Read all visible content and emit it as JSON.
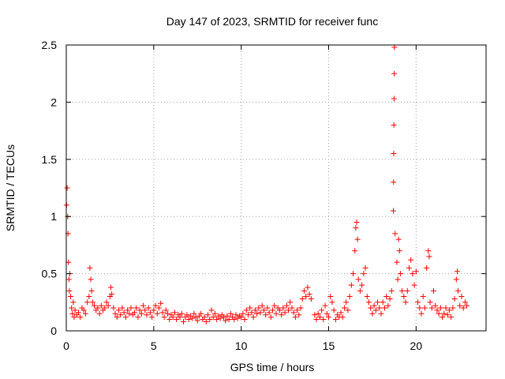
{
  "chart_data": {
    "type": "scatter",
    "title": "Day 147 of 2023, SRMTID for receiver func",
    "xlabel": "GPS time / hours",
    "ylabel": "SRMTID / TECUs",
    "xlim": [
      0,
      24
    ],
    "ylim": [
      0,
      2.5
    ],
    "xticks": [
      0,
      5,
      10,
      15,
      20
    ],
    "xtick_labels": [
      "0",
      "5",
      "10",
      "15",
      "20"
    ],
    "yticks": [
      0,
      0.5,
      1,
      1.5,
      2,
      2.5
    ],
    "ytick_labels": [
      "0",
      "0.5",
      "1",
      "1.5",
      "2",
      "2.5"
    ],
    "grid": true,
    "marker": "+",
    "color": "#ff0000",
    "series": [
      {
        "name": "SRMTID",
        "points": [
          [
            0.02,
            1.1
          ],
          [
            0.05,
            1.25
          ],
          [
            0.08,
            1.0
          ],
          [
            0.1,
            0.85
          ],
          [
            0.12,
            0.6
          ],
          [
            0.15,
            0.45
          ],
          [
            0.18,
            0.35
          ],
          [
            0.2,
            0.5
          ],
          [
            0.25,
            0.3
          ],
          [
            0.3,
            0.2
          ],
          [
            0.35,
            0.15
          ],
          [
            0.4,
            0.25
          ],
          [
            0.45,
            0.12
          ],
          [
            0.5,
            0.18
          ],
          [
            0.6,
            0.14
          ],
          [
            0.7,
            0.16
          ],
          [
            0.8,
            0.12
          ],
          [
            0.9,
            0.2
          ],
          [
            1.0,
            0.18
          ],
          [
            1.1,
            0.15
          ],
          [
            1.2,
            0.25
          ],
          [
            1.3,
            0.3
          ],
          [
            1.35,
            0.55
          ],
          [
            1.4,
            0.45
          ],
          [
            1.45,
            0.35
          ],
          [
            1.5,
            0.25
          ],
          [
            1.6,
            0.22
          ],
          [
            1.7,
            0.18
          ],
          [
            1.8,
            0.2
          ],
          [
            1.9,
            0.15
          ],
          [
            2.0,
            0.22
          ],
          [
            2.1,
            0.18
          ],
          [
            2.2,
            0.2
          ],
          [
            2.3,
            0.25
          ],
          [
            2.4,
            0.22
          ],
          [
            2.5,
            0.3
          ],
          [
            2.55,
            0.38
          ],
          [
            2.6,
            0.32
          ],
          [
            2.7,
            0.2
          ],
          [
            2.8,
            0.15
          ],
          [
            2.9,
            0.12
          ],
          [
            3.0,
            0.18
          ],
          [
            3.1,
            0.14
          ],
          [
            3.2,
            0.2
          ],
          [
            3.3,
            0.16
          ],
          [
            3.4,
            0.12
          ],
          [
            3.5,
            0.18
          ],
          [
            3.6,
            0.15
          ],
          [
            3.7,
            0.2
          ],
          [
            3.8,
            0.14
          ],
          [
            3.9,
            0.16
          ],
          [
            4.0,
            0.2
          ],
          [
            4.1,
            0.12
          ],
          [
            4.2,
            0.18
          ],
          [
            4.3,
            0.15
          ],
          [
            4.4,
            0.22
          ],
          [
            4.5,
            0.18
          ],
          [
            4.6,
            0.14
          ],
          [
            4.7,
            0.2
          ],
          [
            4.8,
            0.16
          ],
          [
            4.9,
            0.12
          ],
          [
            5.0,
            0.18
          ],
          [
            5.1,
            0.22
          ],
          [
            5.2,
            0.15
          ],
          [
            5.3,
            0.2
          ],
          [
            5.4,
            0.24
          ],
          [
            5.5,
            0.16
          ],
          [
            5.6,
            0.12
          ],
          [
            5.7,
            0.18
          ],
          [
            5.8,
            0.15
          ],
          [
            5.9,
            0.1
          ],
          [
            6.0,
            0.14
          ],
          [
            6.1,
            0.12
          ],
          [
            6.2,
            0.16
          ],
          [
            6.3,
            0.1
          ],
          [
            6.4,
            0.14
          ],
          [
            6.5,
            0.12
          ],
          [
            6.6,
            0.15
          ],
          [
            6.7,
            0.08
          ],
          [
            6.8,
            0.12
          ],
          [
            6.9,
            0.14
          ],
          [
            7.0,
            0.1
          ],
          [
            7.1,
            0.13
          ],
          [
            7.2,
            0.11
          ],
          [
            7.3,
            0.15
          ],
          [
            7.4,
            0.12
          ],
          [
            7.5,
            0.09
          ],
          [
            7.6,
            0.13
          ],
          [
            7.7,
            0.15
          ],
          [
            7.8,
            0.1
          ],
          [
            7.9,
            0.12
          ],
          [
            8.0,
            0.08
          ],
          [
            8.1,
            0.14
          ],
          [
            8.2,
            0.1
          ],
          [
            8.3,
            0.18
          ],
          [
            8.4,
            0.12
          ],
          [
            8.5,
            0.15
          ],
          [
            8.6,
            0.1
          ],
          [
            8.7,
            0.13
          ],
          [
            8.8,
            0.11
          ],
          [
            8.9,
            0.14
          ],
          [
            9.0,
            0.12
          ],
          [
            9.1,
            0.09
          ],
          [
            9.2,
            0.13
          ],
          [
            9.3,
            0.1
          ],
          [
            9.4,
            0.15
          ],
          [
            9.5,
            0.12
          ],
          [
            9.6,
            0.1
          ],
          [
            9.7,
            0.14
          ],
          [
            9.8,
            0.11
          ],
          [
            9.9,
            0.13
          ],
          [
            10.0,
            0.12
          ],
          [
            10.1,
            0.15
          ],
          [
            10.2,
            0.1
          ],
          [
            10.3,
            0.18
          ],
          [
            10.4,
            0.14
          ],
          [
            10.5,
            0.2
          ],
          [
            10.6,
            0.16
          ],
          [
            10.7,
            0.12
          ],
          [
            10.8,
            0.18
          ],
          [
            10.9,
            0.15
          ],
          [
            11.0,
            0.2
          ],
          [
            11.1,
            0.16
          ],
          [
            11.2,
            0.22
          ],
          [
            11.3,
            0.18
          ],
          [
            11.4,
            0.14
          ],
          [
            11.5,
            0.2
          ],
          [
            11.6,
            0.16
          ],
          [
            11.7,
            0.12
          ],
          [
            11.8,
            0.18
          ],
          [
            11.9,
            0.22
          ],
          [
            12.0,
            0.15
          ],
          [
            12.1,
            0.2
          ],
          [
            12.2,
            0.18
          ],
          [
            12.3,
            0.14
          ],
          [
            12.4,
            0.2
          ],
          [
            12.5,
            0.16
          ],
          [
            12.6,
            0.22
          ],
          [
            12.7,
            0.18
          ],
          [
            12.8,
            0.25
          ],
          [
            12.9,
            0.2
          ],
          [
            13.0,
            0.16
          ],
          [
            13.1,
            0.12
          ],
          [
            13.2,
            0.18
          ],
          [
            13.3,
            0.14
          ],
          [
            13.4,
            0.2
          ],
          [
            13.5,
            0.28
          ],
          [
            13.6,
            0.35
          ],
          [
            13.7,
            0.3
          ],
          [
            13.8,
            0.38
          ],
          [
            13.9,
            0.32
          ],
          [
            14.0,
            0.28
          ],
          [
            14.2,
            0.14
          ],
          [
            14.3,
            0.1
          ],
          [
            14.4,
            0.15
          ],
          [
            14.5,
            0.12
          ],
          [
            14.6,
            0.18
          ],
          [
            14.7,
            0.1
          ],
          [
            14.8,
            0.22
          ],
          [
            14.9,
            0.15
          ],
          [
            15.0,
            0.12
          ],
          [
            15.1,
            0.3
          ],
          [
            15.2,
            0.25
          ],
          [
            15.3,
            0.18
          ],
          [
            15.4,
            0.1
          ],
          [
            15.5,
            0.14
          ],
          [
            15.6,
            0.12
          ],
          [
            15.7,
            0.16
          ],
          [
            15.8,
            0.12
          ],
          [
            15.9,
            0.2
          ],
          [
            16.0,
            0.25
          ],
          [
            16.1,
            0.18
          ],
          [
            16.2,
            0.3
          ],
          [
            16.3,
            0.4
          ],
          [
            16.4,
            0.5
          ],
          [
            16.5,
            0.7
          ],
          [
            16.55,
            0.9
          ],
          [
            16.6,
            0.95
          ],
          [
            16.65,
            0.8
          ],
          [
            16.7,
            0.45
          ],
          [
            16.8,
            0.35
          ],
          [
            16.9,
            0.4
          ],
          [
            17.0,
            0.5
          ],
          [
            17.1,
            0.55
          ],
          [
            17.2,
            0.3
          ],
          [
            17.3,
            0.25
          ],
          [
            17.4,
            0.2
          ],
          [
            17.5,
            0.15
          ],
          [
            17.6,
            0.22
          ],
          [
            17.7,
            0.18
          ],
          [
            17.8,
            0.25
          ],
          [
            17.9,
            0.2
          ],
          [
            18.0,
            0.15
          ],
          [
            18.1,
            0.25
          ],
          [
            18.2,
            0.2
          ],
          [
            18.3,
            0.3
          ],
          [
            18.4,
            0.22
          ],
          [
            18.5,
            0.28
          ],
          [
            18.6,
            0.35
          ],
          [
            18.7,
            1.05
          ],
          [
            18.71,
            1.3
          ],
          [
            18.72,
            1.55
          ],
          [
            18.73,
            1.8
          ],
          [
            18.74,
            2.03
          ],
          [
            18.75,
            2.25
          ],
          [
            18.76,
            2.48
          ],
          [
            18.8,
            0.85
          ],
          [
            18.9,
            0.6
          ],
          [
            18.95,
            0.45
          ],
          [
            19.0,
            0.8
          ],
          [
            19.05,
            0.7
          ],
          [
            19.1,
            0.5
          ],
          [
            19.2,
            0.35
          ],
          [
            19.3,
            0.3
          ],
          [
            19.4,
            0.25
          ],
          [
            19.5,
            0.35
          ],
          [
            19.6,
            0.55
          ],
          [
            19.7,
            0.62
          ],
          [
            19.8,
            0.5
          ],
          [
            19.9,
            0.4
          ],
          [
            20.0,
            0.52
          ],
          [
            20.1,
            0.25
          ],
          [
            20.2,
            0.2
          ],
          [
            20.3,
            0.15
          ],
          [
            20.4,
            0.3
          ],
          [
            20.5,
            0.2
          ],
          [
            20.6,
            0.55
          ],
          [
            20.7,
            0.7
          ],
          [
            20.75,
            0.65
          ],
          [
            20.8,
            0.25
          ],
          [
            20.9,
            0.2
          ],
          [
            21.0,
            0.35
          ],
          [
            21.1,
            0.22
          ],
          [
            21.2,
            0.18
          ],
          [
            21.3,
            0.15
          ],
          [
            21.4,
            0.2
          ],
          [
            21.5,
            0.12
          ],
          [
            21.6,
            0.15
          ],
          [
            21.7,
            0.2
          ],
          [
            21.8,
            0.14
          ],
          [
            21.9,
            0.18
          ],
          [
            22.0,
            0.12
          ],
          [
            22.1,
            0.2
          ],
          [
            22.2,
            0.28
          ],
          [
            22.3,
            0.45
          ],
          [
            22.35,
            0.52
          ],
          [
            22.4,
            0.35
          ],
          [
            22.5,
            0.22
          ],
          [
            22.6,
            0.3
          ],
          [
            22.7,
            0.2
          ],
          [
            22.8,
            0.25
          ],
          [
            22.9,
            0.22
          ]
        ]
      }
    ]
  }
}
